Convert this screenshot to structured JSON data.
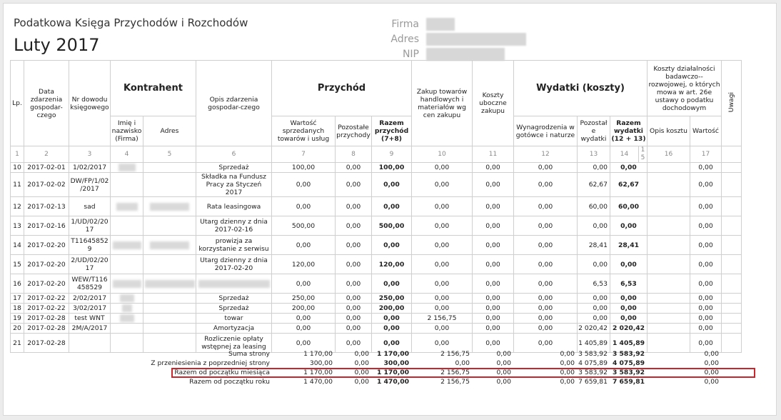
{
  "header": {
    "title": "Podatkowa Księga Przychodów i Rozchodów",
    "month": "Luty 2017",
    "firm_label": "Firma",
    "address_label": "Adres",
    "nip_label": "NIP"
  },
  "columns": {
    "lp": "Lp.",
    "date": "Data zdarzenia gospodar-czego",
    "doc": "Nr dowodu księgowego",
    "contractor": "Kontrahent",
    "name": "Imię i nazwisko (Firma)",
    "address": "Adres",
    "desc": "Opis zdarzenia gospodar-czego",
    "revenue": "Przychód",
    "sales": "Wartość sprzedanych towarów i usług",
    "other_rev": "Pozostałe przychody",
    "total_rev": "Razem przychód (7+8)",
    "purchase": "Zakup towarów handlowych i materiałów wg cen zakupu",
    "side_costs": "Koszty uboczne zakupu",
    "expenses": "Wydatki (koszty)",
    "salaries": "Wynagrodzenia w gotówce i naturze",
    "other_exp": "Pozostałe wydatki",
    "total_exp": "Razem wydatki (12 + 13)",
    "rd": "Koszty działalności badawczo--rozwojowej, o których mowa w art. 26e ustawy o podatku dochodowym",
    "rd_desc": "Opis kosztu",
    "rd_value": "Wartość",
    "notes": "Uwagi"
  },
  "col_numbers": [
    "1",
    "2",
    "3",
    "4",
    "5",
    "6",
    "7",
    "8",
    "9",
    "10",
    "11",
    "12",
    "13",
    "14",
    "15",
    "16",
    "17"
  ],
  "rows": [
    {
      "lp": "10",
      "date": "2017-02-01",
      "doc": "1/02/2017",
      "desc": "Sprzedaż",
      "sales": "100,00",
      "other_rev": "0,00",
      "total_rev": "100,00",
      "purchase": "0,00",
      "side": "0,00",
      "sal": "0,00",
      "oth": "0,00",
      "tot": "0,00",
      "rd": "0,00"
    },
    {
      "lp": "11",
      "date": "2017-02-02",
      "doc": "DW/FP/1/02/2017",
      "desc": "Składka na Fundusz Pracy za Styczeń 2017",
      "sales": "0,00",
      "other_rev": "0,00",
      "total_rev": "0,00",
      "purchase": "0,00",
      "side": "0,00",
      "sal": "0,00",
      "oth": "62,67",
      "tot": "62,67",
      "rd": "0,00"
    },
    {
      "lp": "12",
      "date": "2017-02-13",
      "doc": "sad",
      "desc": "Rata leasingowa",
      "sales": "0,00",
      "other_rev": "0,00",
      "total_rev": "0,00",
      "purchase": "0,00",
      "side": "0,00",
      "sal": "0,00",
      "oth": "60,00",
      "tot": "60,00",
      "rd": "0,00"
    },
    {
      "lp": "13",
      "date": "2017-02-16",
      "doc": "1/UD/02/2017",
      "desc": "Utarg dzienny z dnia 2017-02-16",
      "sales": "500,00",
      "other_rev": "0,00",
      "total_rev": "500,00",
      "purchase": "0,00",
      "side": "0,00",
      "sal": "0,00",
      "oth": "0,00",
      "tot": "0,00",
      "rd": "0,00"
    },
    {
      "lp": "14",
      "date": "2017-02-20",
      "doc": "T116458529",
      "desc": "prowizja za korzystanie z serwisu",
      "sales": "0,00",
      "other_rev": "0,00",
      "total_rev": "0,00",
      "purchase": "0,00",
      "side": "0,00",
      "sal": "0,00",
      "oth": "28,41",
      "tot": "28,41",
      "rd": "0,00"
    },
    {
      "lp": "15",
      "date": "2017-02-20",
      "doc": "2/UD/02/2017",
      "desc": "Utarg dzienny z dnia 2017-02-20",
      "sales": "120,00",
      "other_rev": "0,00",
      "total_rev": "120,00",
      "purchase": "0,00",
      "side": "0,00",
      "sal": "0,00",
      "oth": "0,00",
      "tot": "0,00",
      "rd": "0,00"
    },
    {
      "lp": "16",
      "date": "2017-02-20",
      "doc": "WEW/T116458529",
      "desc": "",
      "sales": "0,00",
      "other_rev": "0,00",
      "total_rev": "0,00",
      "purchase": "0,00",
      "side": "0,00",
      "sal": "0,00",
      "oth": "6,53",
      "tot": "6,53",
      "rd": "0,00"
    },
    {
      "lp": "17",
      "date": "2017-02-22",
      "doc": "2/02/2017",
      "desc": "Sprzedaż",
      "sales": "250,00",
      "other_rev": "0,00",
      "total_rev": "250,00",
      "purchase": "0,00",
      "side": "0,00",
      "sal": "0,00",
      "oth": "0,00",
      "tot": "0,00",
      "rd": "0,00"
    },
    {
      "lp": "18",
      "date": "2017-02-22",
      "doc": "3/02/2017",
      "desc": "Sprzedaż",
      "sales": "200,00",
      "other_rev": "0,00",
      "total_rev": "200,00",
      "purchase": "0,00",
      "side": "0,00",
      "sal": "0,00",
      "oth": "0,00",
      "tot": "0,00",
      "rd": "0,00"
    },
    {
      "lp": "19",
      "date": "2017-02-28",
      "doc": "test WNT",
      "desc": "towar",
      "sales": "0,00",
      "other_rev": "0,00",
      "total_rev": "0,00",
      "purchase": "2 156,75",
      "side": "0,00",
      "sal": "0,00",
      "oth": "0,00",
      "tot": "0,00",
      "rd": "0,00"
    },
    {
      "lp": "20",
      "date": "2017-02-28",
      "doc": "2M/A/2017",
      "desc": "Amortyzacja",
      "sales": "0,00",
      "other_rev": "0,00",
      "total_rev": "0,00",
      "purchase": "0,00",
      "side": "0,00",
      "sal": "0,00",
      "oth": "2 020,42",
      "tot": "2 020,42",
      "rd": "0,00"
    },
    {
      "lp": "21",
      "date": "2017-02-28",
      "doc": "",
      "desc": "Rozliczenie opłaty wstępnej za leasing",
      "sales": "0,00",
      "other_rev": "0,00",
      "total_rev": "0,00",
      "purchase": "0,00",
      "side": "0,00",
      "sal": "0,00",
      "oth": "1 405,89",
      "tot": "1 405,89",
      "rd": "0,00"
    }
  ],
  "summary": [
    {
      "label": "Suma strony",
      "sales": "1 170,00",
      "other_rev": "0,00",
      "total_rev": "1 170,00",
      "purchase": "2 156,75",
      "side": "0,00",
      "sal": "0,00",
      "oth": "3 583,92",
      "tot": "3 583,92",
      "rd": "0,00"
    },
    {
      "label": "Z przeniesienia z poprzedniej strony",
      "sales": "300,00",
      "other_rev": "0,00",
      "total_rev": "300,00",
      "purchase": "0,00",
      "side": "0,00",
      "sal": "0,00",
      "oth": "4 075,89",
      "tot": "4 075,89",
      "rd": "0,00"
    },
    {
      "label": "Razem od początku miesiąca",
      "sales": "1 170,00",
      "other_rev": "0,00",
      "total_rev": "1 170,00",
      "purchase": "2 156,75",
      "side": "0,00",
      "sal": "0,00",
      "oth": "3 583,92",
      "tot": "3 583,92",
      "rd": "0,00"
    },
    {
      "label": "Razem od początku roku",
      "sales": "1 470,00",
      "other_rev": "0,00",
      "total_rev": "1 470,00",
      "purchase": "2 156,75",
      "side": "0,00",
      "sal": "0,00",
      "oth": "7 659,81",
      "tot": "7 659,81",
      "rd": "0,00"
    }
  ],
  "colors": {
    "highlight": "#c9252c",
    "border": "#cfcfcf"
  }
}
